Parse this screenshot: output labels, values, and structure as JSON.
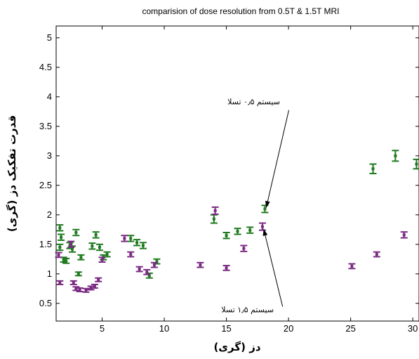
{
  "chart_data": {
    "type": "scatter",
    "title": "comparision of dose resolution from 0.5T & 1.5T MRI",
    "xlabel": "دز (گری)",
    "ylabel": "قدرت تفکیک دز (گری)",
    "xlim": [
      1.3,
      30.5
    ],
    "ylim": [
      0.2,
      5.2
    ],
    "xticks": [
      5,
      10,
      15,
      20,
      25,
      30
    ],
    "yticks": [
      0.5,
      1,
      1.5,
      2,
      2.5,
      3,
      3.5,
      4,
      4.5,
      5
    ],
    "xtick_labels": [
      "5",
      "10",
      "15",
      "20",
      "25",
      "30"
    ],
    "ytick_labels": [
      "0.5",
      "1",
      "1.5",
      "2",
      "2.5",
      "3",
      "3.5",
      "4",
      "4.5",
      "5"
    ],
    "series": [
      {
        "color": "#1e7a1e",
        "points": [
          {
            "x": 1.6,
            "y": 1.78,
            "err": 0.05
          },
          {
            "x": 1.7,
            "y": 1.62,
            "err": 0.05
          },
          {
            "x": 1.6,
            "y": 1.45,
            "err": 0.05
          },
          {
            "x": 1.9,
            "y": 1.24,
            "err": 0.04
          },
          {
            "x": 2.1,
            "y": 1.22,
            "err": 0.04
          },
          {
            "x": 2.4,
            "y": 1.48,
            "err": 0.05
          },
          {
            "x": 2.6,
            "y": 1.42,
            "err": 0.05
          },
          {
            "x": 2.9,
            "y": 1.7,
            "err": 0.05
          },
          {
            "x": 3.1,
            "y": 1.0,
            "err": 0.03
          },
          {
            "x": 3.3,
            "y": 1.28,
            "err": 0.04
          },
          {
            "x": 4.2,
            "y": 1.47,
            "err": 0.05
          },
          {
            "x": 4.5,
            "y": 1.66,
            "err": 0.05
          },
          {
            "x": 4.8,
            "y": 1.45,
            "err": 0.05
          },
          {
            "x": 5.1,
            "y": 1.28,
            "err": 0.04
          },
          {
            "x": 5.4,
            "y": 1.33,
            "err": 0.04
          },
          {
            "x": 7.3,
            "y": 1.6,
            "err": 0.05
          },
          {
            "x": 7.8,
            "y": 1.53,
            "err": 0.05
          },
          {
            "x": 8.3,
            "y": 1.48,
            "err": 0.05
          },
          {
            "x": 8.8,
            "y": 0.97,
            "err": 0.04
          },
          {
            "x": 9.4,
            "y": 1.21,
            "err": 0.04
          },
          {
            "x": 14.0,
            "y": 1.93,
            "err": 0.07
          },
          {
            "x": 15.0,
            "y": 1.65,
            "err": 0.05
          },
          {
            "x": 15.9,
            "y": 1.72,
            "err": 0.05
          },
          {
            "x": 16.9,
            "y": 1.74,
            "err": 0.05
          },
          {
            "x": 18.1,
            "y": 2.1,
            "err": 0.06
          },
          {
            "x": 26.8,
            "y": 2.78,
            "err": 0.08
          },
          {
            "x": 28.6,
            "y": 3.0,
            "err": 0.09
          },
          {
            "x": 30.3,
            "y": 2.86,
            "err": 0.08
          }
        ]
      },
      {
        "color": "#7a2a82",
        "points": [
          {
            "x": 1.5,
            "y": 1.32,
            "err": 0.04
          },
          {
            "x": 1.6,
            "y": 0.85,
            "err": 0.03
          },
          {
            "x": 2.5,
            "y": 1.5,
            "err": 0.05
          },
          {
            "x": 2.7,
            "y": 0.85,
            "err": 0.03
          },
          {
            "x": 2.9,
            "y": 0.75,
            "err": 0.03
          },
          {
            "x": 3.2,
            "y": 0.73,
            "err": 0.03
          },
          {
            "x": 3.7,
            "y": 0.72,
            "err": 0.03
          },
          {
            "x": 4.1,
            "y": 0.76,
            "err": 0.03
          },
          {
            "x": 4.4,
            "y": 0.79,
            "err": 0.03
          },
          {
            "x": 4.7,
            "y": 0.9,
            "err": 0.03
          },
          {
            "x": 5.0,
            "y": 1.24,
            "err": 0.04
          },
          {
            "x": 6.8,
            "y": 1.6,
            "err": 0.05
          },
          {
            "x": 7.3,
            "y": 1.33,
            "err": 0.04
          },
          {
            "x": 8.0,
            "y": 1.08,
            "err": 0.04
          },
          {
            "x": 8.6,
            "y": 1.03,
            "err": 0.04
          },
          {
            "x": 9.2,
            "y": 1.15,
            "err": 0.04
          },
          {
            "x": 12.9,
            "y": 1.15,
            "err": 0.04
          },
          {
            "x": 14.1,
            "y": 2.07,
            "err": 0.06
          },
          {
            "x": 15.0,
            "y": 1.1,
            "err": 0.04
          },
          {
            "x": 16.4,
            "y": 1.43,
            "err": 0.05
          },
          {
            "x": 17.9,
            "y": 1.8,
            "err": 0.06
          },
          {
            "x": 25.1,
            "y": 1.13,
            "err": 0.04
          },
          {
            "x": 27.1,
            "y": 1.33,
            "err": 0.04
          },
          {
            "x": 29.3,
            "y": 1.66,
            "err": 0.05
          }
        ]
      }
    ],
    "annotations": [
      {
        "text": "سیستم ۰٫۵ تسلا",
        "x": 17.2,
        "y": 3.87,
        "target": [
          18.2,
          2.12
        ]
      },
      {
        "text": "سیستم ۱٫۵ تسلا",
        "x": 16.7,
        "y": 0.35,
        "target": [
          18.0,
          1.76
        ]
      }
    ],
    "grid": false,
    "legend": "none"
  }
}
